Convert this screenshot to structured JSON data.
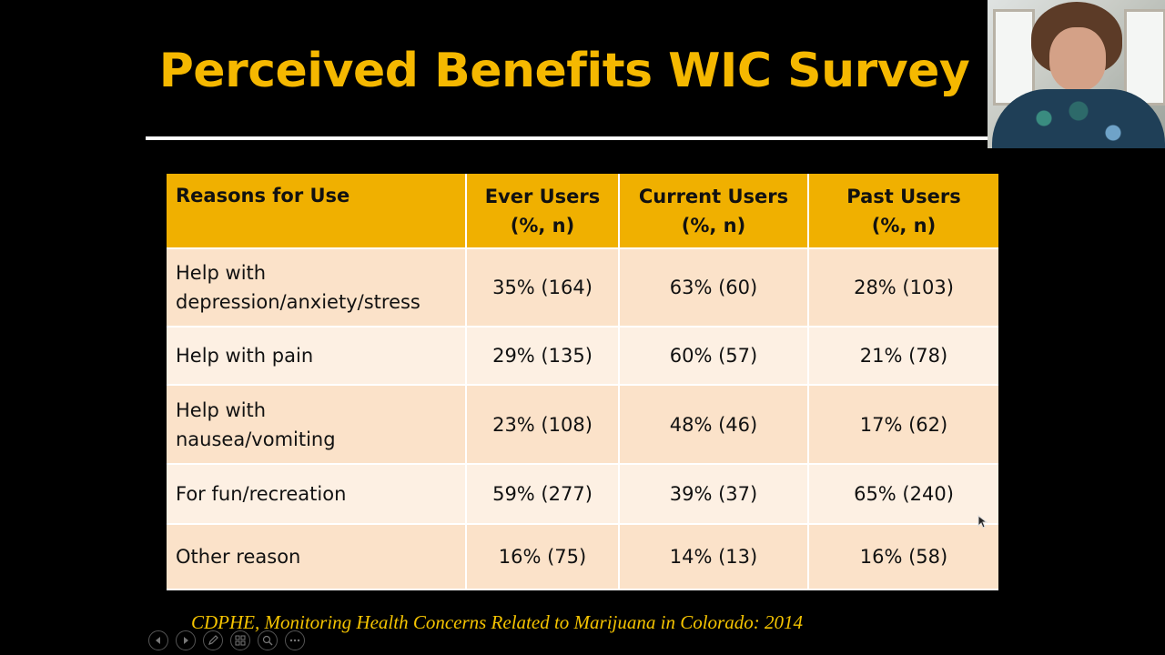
{
  "slide": {
    "title": "Perceived Benefits WIC Survey",
    "citation": "CDPHE, Monitoring Health Concerns Related to Marijuana in Colorado: 2014",
    "table": {
      "headers": [
        {
          "line1": "Reasons for Use",
          "line2": ""
        },
        {
          "line1": "Ever Users",
          "line2": "(%, n)"
        },
        {
          "line1": "Current Users",
          "line2": "(%, n)"
        },
        {
          "line1": "Past Users",
          "line2": "(%, n)"
        }
      ],
      "rows": [
        {
          "reason_l1": "Help with",
          "reason_l2": "depression/anxiety/stress",
          "ever": "35% (164)",
          "current": "63% (60)",
          "past": "28% (103)"
        },
        {
          "reason_l1": "Help with pain",
          "reason_l2": "",
          "ever": "29% (135)",
          "current": "60% (57)",
          "past": "21% (78)"
        },
        {
          "reason_l1": "Help with",
          "reason_l2": "nausea/vomiting",
          "ever": "23% (108)",
          "current": "48% (46)",
          "past": "17% (62)"
        },
        {
          "reason_l1": "For fun/recreation",
          "reason_l2": "",
          "ever": "59% (277)",
          "current": "39% (37)",
          "past": "65% (240)"
        },
        {
          "reason_l1": "Other reason",
          "reason_l2": "",
          "ever": "16% (75)",
          "current": "14% (13)",
          "past": "16% (58)"
        }
      ]
    }
  },
  "toolbar": {
    "buttons": [
      "prev-icon",
      "next-icon",
      "pen-icon",
      "slides-grid-icon",
      "zoom-icon",
      "more-options-icon"
    ]
  },
  "colors": {
    "title": "#f5b800",
    "header_bg": "#f0b000",
    "row_odd": "#fbe2c9",
    "row_even": "#fdf0e3",
    "citation": "#f5c400"
  }
}
